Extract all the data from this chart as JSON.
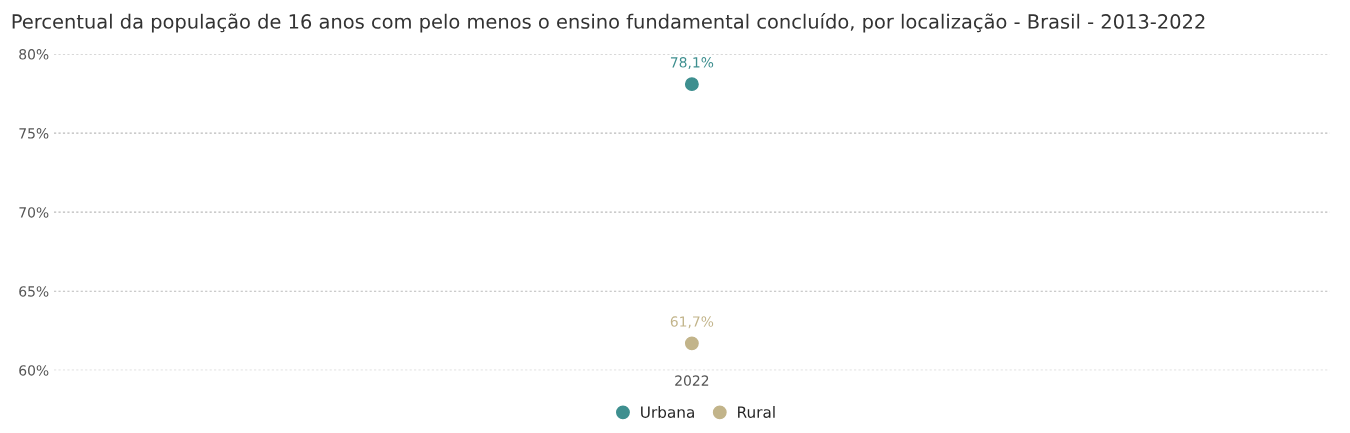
{
  "chart_data": {
    "type": "line",
    "title": "Percentual da população de 16 anos com pelo menos o ensino fundamental concluído, por localização - Brasil - 2013-2022",
    "categories": [
      "2022"
    ],
    "series": [
      {
        "name": "Urbana",
        "color": "#3e8f8f",
        "values": [
          78.1
        ],
        "value_labels": [
          "78,1%"
        ]
      },
      {
        "name": "Rural",
        "color": "#c2b48a",
        "values": [
          61.7
        ],
        "value_labels": [
          "61,7%"
        ]
      }
    ],
    "ylim": [
      60,
      80
    ],
    "yticks": [
      {
        "value": 60,
        "label": "60%"
      },
      {
        "value": 65,
        "label": "65%"
      },
      {
        "value": 70,
        "label": "70%"
      },
      {
        "value": 75,
        "label": "75%"
      },
      {
        "value": 80,
        "label": "80%"
      }
    ],
    "grid": "y",
    "legend": "bottom",
    "marker": "circle"
  }
}
